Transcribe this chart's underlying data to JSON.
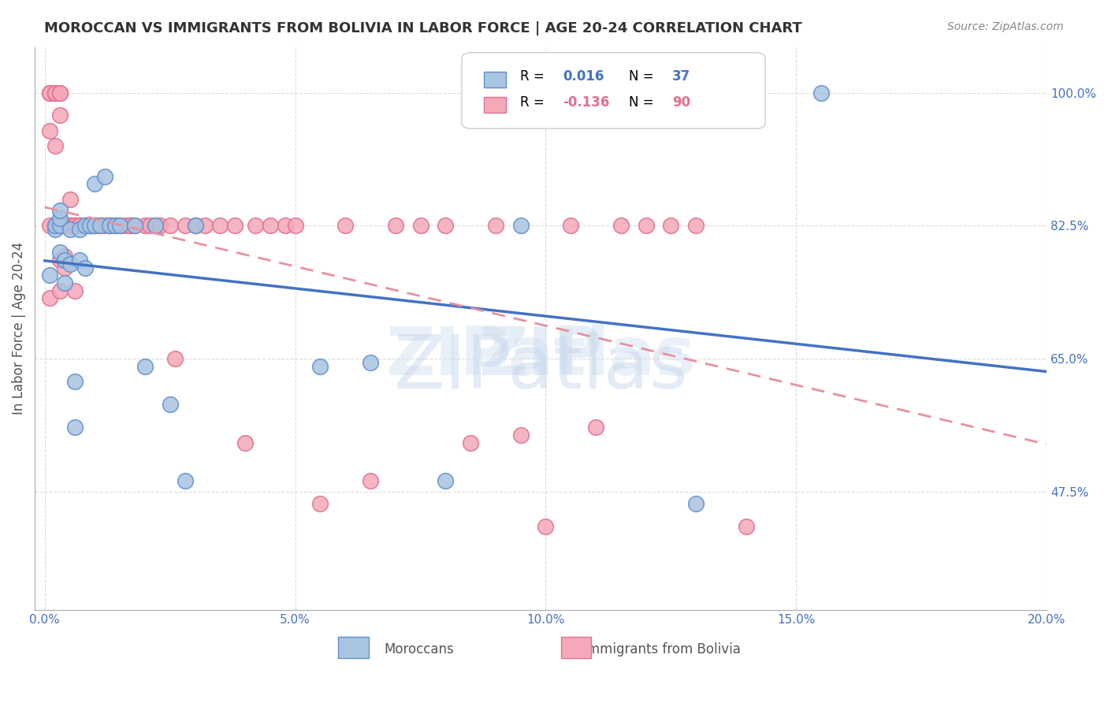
{
  "title": "MOROCCAN VS IMMIGRANTS FROM BOLIVIA IN LABOR FORCE | AGE 20-24 CORRELATION CHART",
  "source": "Source: ZipAtlas.com",
  "xlabel_ticks": [
    "0.0%",
    "5.0%",
    "10.0%",
    "15.0%",
    "20.0%"
  ],
  "xlabel_tick_vals": [
    0.0,
    0.05,
    0.1,
    0.15,
    0.2
  ],
  "ylabel_ticks": [
    "100.0%",
    "82.5%",
    "65.0%",
    "47.5%"
  ],
  "ylabel_tick_vals": [
    1.0,
    0.825,
    0.65,
    0.475
  ],
  "xlim": [
    0.0,
    0.2
  ],
  "ylim": [
    0.3,
    1.05
  ],
  "ylabel": "In Labor Force | Age 20-24",
  "legend_labels": [
    "Moroccans",
    "Immigrants from Bolivia"
  ],
  "moroccan_R": 0.016,
  "moroccan_N": 37,
  "bolivia_R": -0.136,
  "bolivia_N": 90,
  "moroccan_color": "#a8c4e0",
  "bolivia_color": "#f4a8b8",
  "moroccan_line_color": "#4472c4",
  "bolivia_line_color": "#e8919f",
  "watermark": "ZIPatlas",
  "moroccan_points_x": [
    0.001,
    0.002,
    0.002,
    0.003,
    0.003,
    0.003,
    0.003,
    0.004,
    0.004,
    0.005,
    0.005,
    0.006,
    0.006,
    0.007,
    0.007,
    0.008,
    0.008,
    0.009,
    0.01,
    0.01,
    0.011,
    0.012,
    0.013,
    0.014,
    0.015,
    0.018,
    0.02,
    0.022,
    0.025,
    0.028,
    0.03,
    0.055,
    0.065,
    0.08,
    0.095,
    0.13,
    0.155
  ],
  "moroccan_points_y": [
    0.76,
    0.82,
    0.825,
    0.79,
    0.825,
    0.835,
    0.845,
    0.75,
    0.78,
    0.775,
    0.82,
    0.56,
    0.62,
    0.78,
    0.82,
    0.77,
    0.825,
    0.825,
    0.825,
    0.88,
    0.825,
    0.89,
    0.825,
    0.825,
    0.825,
    0.825,
    0.64,
    0.825,
    0.59,
    0.49,
    0.825,
    0.64,
    0.645,
    0.49,
    0.825,
    0.46,
    1.0
  ],
  "bolivia_points_x": [
    0.001,
    0.001,
    0.001,
    0.001,
    0.001,
    0.002,
    0.002,
    0.002,
    0.002,
    0.002,
    0.002,
    0.002,
    0.003,
    0.003,
    0.003,
    0.003,
    0.003,
    0.003,
    0.003,
    0.003,
    0.003,
    0.004,
    0.004,
    0.004,
    0.004,
    0.004,
    0.005,
    0.005,
    0.005,
    0.006,
    0.006,
    0.006,
    0.006,
    0.007,
    0.007,
    0.007,
    0.007,
    0.008,
    0.008,
    0.008,
    0.009,
    0.009,
    0.009,
    0.01,
    0.01,
    0.01,
    0.011,
    0.011,
    0.012,
    0.013,
    0.013,
    0.014,
    0.015,
    0.016,
    0.017,
    0.017,
    0.018,
    0.02,
    0.021,
    0.022,
    0.023,
    0.025,
    0.026,
    0.028,
    0.03,
    0.032,
    0.035,
    0.038,
    0.04,
    0.042,
    0.045,
    0.048,
    0.05,
    0.055,
    0.06,
    0.065,
    0.07,
    0.075,
    0.08,
    0.085,
    0.09,
    0.095,
    0.1,
    0.105,
    0.11,
    0.115,
    0.12,
    0.125,
    0.13,
    0.14
  ],
  "bolivia_points_y": [
    0.825,
    0.95,
    1.0,
    1.0,
    0.73,
    0.825,
    0.825,
    0.825,
    0.825,
    0.93,
    1.0,
    1.0,
    0.825,
    0.825,
    0.825,
    0.825,
    0.78,
    0.74,
    1.0,
    1.0,
    0.97,
    0.825,
    0.825,
    0.825,
    0.785,
    0.77,
    0.825,
    0.825,
    0.86,
    0.825,
    0.825,
    0.825,
    0.74,
    0.825,
    0.825,
    0.825,
    0.825,
    0.825,
    0.825,
    0.825,
    0.825,
    0.825,
    0.825,
    0.825,
    0.825,
    0.825,
    0.825,
    0.825,
    0.825,
    0.825,
    0.825,
    0.825,
    0.825,
    0.825,
    0.825,
    0.825,
    0.825,
    0.825,
    0.825,
    0.825,
    0.825,
    0.825,
    0.65,
    0.825,
    0.825,
    0.825,
    0.825,
    0.825,
    0.54,
    0.825,
    0.825,
    0.825,
    0.825,
    0.46,
    0.825,
    0.49,
    0.825,
    0.825,
    0.825,
    0.54,
    0.825,
    0.55,
    0.43,
    0.825,
    0.56,
    0.825,
    0.825,
    0.825,
    0.825,
    0.43
  ]
}
